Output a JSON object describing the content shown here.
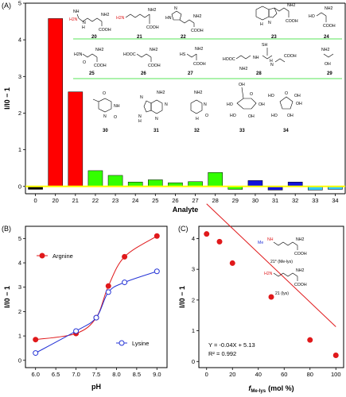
{
  "chart_data": [
    {
      "panel": "(A)",
      "type": "bar",
      "xlabel": "Analyte",
      "ylabel": "I/I0 − 1",
      "ylim": [
        -0.2,
        5.0
      ],
      "yticks": [
        0,
        1,
        2,
        3,
        4,
        5
      ],
      "categories": [
        "0",
        "20",
        "21",
        "22",
        "23",
        "24",
        "25",
        "26",
        "27",
        "28",
        "29",
        "30",
        "31",
        "32",
        "33",
        "34"
      ],
      "values": [
        -0.08,
        4.58,
        2.58,
        0.43,
        0.3,
        0.12,
        0.18,
        0.1,
        0.13,
        0.38,
        -0.08,
        0.16,
        -0.1,
        0.12,
        -0.1,
        -0.08
      ],
      "colors": [
        "#000000",
        "#ff0000",
        "#ff0000",
        "#33ff00",
        "#33ff00",
        "#33ff00",
        "#33ff00",
        "#33ff00",
        "#33ff00",
        "#33ff00",
        "#33ff00",
        "#1111dd",
        "#1111dd",
        "#1111dd",
        "#33ccff",
        "#33ccff"
      ],
      "baseline_color": "#ffff00",
      "compound_labels": [
        "20",
        "21",
        "22",
        "23",
        "24",
        "25",
        "26",
        "27",
        "28",
        "29",
        "30",
        "31",
        "32",
        "33",
        "34"
      ]
    },
    {
      "panel": "(B)",
      "type": "line",
      "xlabel": "pH",
      "ylabel": "I/I0 − 1",
      "xlim": [
        5.75,
        9.25
      ],
      "ylim": [
        -0.3,
        5.5
      ],
      "xticks": [
        "6.0",
        "6.5",
        "7.0",
        "7.5",
        "8.0",
        "8.5",
        "9.0"
      ],
      "yticks": [
        0,
        1,
        2,
        3,
        4,
        5
      ],
      "legend": "left",
      "series": [
        {
          "name": "Argnine",
          "color": "#e0191b",
          "marker": "filled",
          "x": [
            6.0,
            7.0,
            7.5,
            7.8,
            8.2,
            9.0
          ],
          "y": [
            0.85,
            1.1,
            1.75,
            3.05,
            4.25,
            5.1
          ]
        },
        {
          "name": "Lysine",
          "color": "#2433d6",
          "marker": "open",
          "x": [
            6.0,
            7.0,
            7.5,
            7.8,
            8.2,
            9.0
          ],
          "y": [
            0.3,
            1.2,
            1.75,
            2.8,
            3.2,
            3.65
          ]
        }
      ]
    },
    {
      "panel": "(C)",
      "type": "scatter",
      "xlabel": "f",
      "xlabel_sub": "Me-lys",
      "xlabel_unit": "(mol %)",
      "ylabel": "I/I0 − 1",
      "xlim": [
        -6,
        106
      ],
      "ylim": [
        -0.2,
        4.4
      ],
      "xticks": [
        0,
        20,
        40,
        60,
        80,
        100
      ],
      "yticks": [
        0,
        1,
        2,
        3,
        4
      ],
      "color": "#e0191b",
      "x": [
        0,
        10,
        20,
        50,
        80,
        100
      ],
      "y": [
        4.15,
        3.9,
        3.2,
        2.1,
        0.7,
        0.2
      ],
      "fit": {
        "slope": -0.04,
        "intercept": 5.13
      },
      "fit_x": [
        0,
        100
      ],
      "equation": "Y = -0.04X + 5.13",
      "r2": "R² = 0.992"
    }
  ],
  "structures": {
    "c20": "20",
    "c21": "21",
    "c22": "22",
    "c23": "23",
    "c24": "24",
    "c25": "25",
    "c26": "26",
    "c27": "27",
    "c28": "28",
    "c29": "29",
    "c30": "30",
    "c31": "31",
    "c32": "32",
    "c33": "33",
    "c34": "34",
    "nh2": "NH2",
    "h2n": "H2N",
    "cooh": "COOH",
    "hooc": "HOOC",
    "ho": "HO",
    "hn": "HN",
    "nh": "NH",
    "hs": "HS",
    "sh": "SH",
    "o": "O",
    "oh": "OH",
    "n": "N",
    "h": "H",
    "me": "Me",
    "c21star": "21* (Me-lys)",
    "c21lys": "21 (lys)"
  }
}
